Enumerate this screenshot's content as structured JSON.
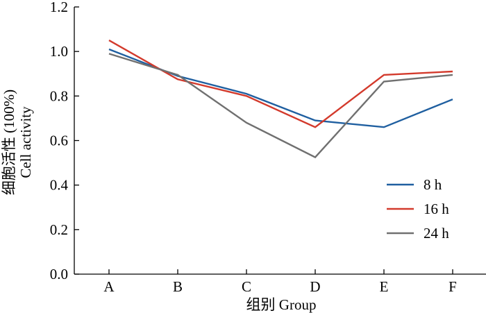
{
  "chart_data": {
    "type": "line",
    "categories": [
      "A",
      "B",
      "C",
      "D",
      "E",
      "F"
    ],
    "series": [
      {
        "name": "8 h",
        "color": "#1f5fa0",
        "values": [
          1.01,
          0.89,
          0.81,
          0.69,
          0.66,
          0.785
        ]
      },
      {
        "name": "16 h",
        "color": "#d33a2c",
        "values": [
          1.05,
          0.875,
          0.8,
          0.66,
          0.895,
          0.91
        ]
      },
      {
        "name": "24 h",
        "color": "#707070",
        "values": [
          0.99,
          0.895,
          0.68,
          0.525,
          0.865,
          0.895
        ]
      }
    ],
    "ylim": [
      0.0,
      1.2
    ],
    "yticks": [
      0.0,
      0.2,
      0.4,
      0.6,
      0.8,
      1.0,
      1.2
    ],
    "ytick_labels": [
      "0.0",
      "0.2",
      "0.4",
      "0.6",
      "0.8",
      "1.0",
      "1.2"
    ],
    "xlabel": "组别 Group",
    "ylabel_line1": "细胞活性 (100%)",
    "ylabel_line2": "Cell activity",
    "grid": false,
    "legend_position": "right"
  }
}
